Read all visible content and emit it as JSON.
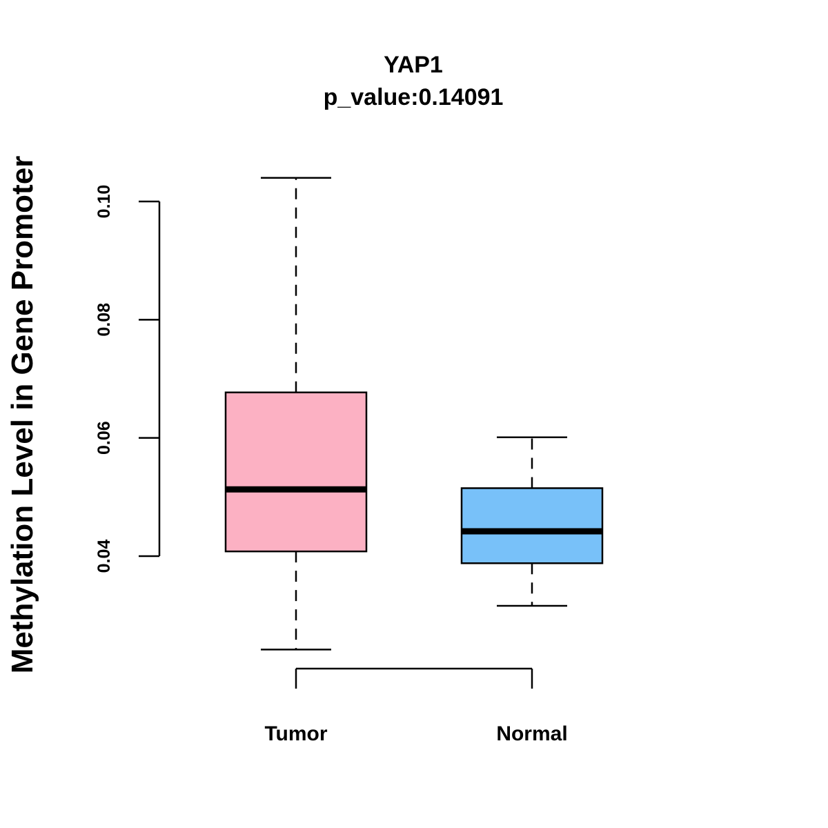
{
  "chart_data": {
    "type": "boxplot",
    "title": "YAP1",
    "subtitle": "p_value:0.14091",
    "xlabel": "",
    "ylabel": "Methylation Level in Gene Promoter",
    "categories": [
      "Tumor",
      "Normal"
    ],
    "y_ticks": [
      0.04,
      0.06,
      0.08,
      0.1
    ],
    "y_tick_labels": [
      "0.04",
      "0.06",
      "0.08",
      "0.10"
    ],
    "boxes": [
      {
        "name": "Tumor",
        "whisker_low": 0.0242,
        "q1": 0.0408,
        "median": 0.0513,
        "q3": 0.0677,
        "whisker_high": 0.104,
        "color": "#FCB1C3"
      },
      {
        "name": "Normal",
        "whisker_low": 0.0316,
        "q1": 0.0388,
        "median": 0.0442,
        "q3": 0.0515,
        "whisker_high": 0.0601,
        "color": "#78C1F9"
      }
    ],
    "grid": false,
    "legend": "none"
  }
}
